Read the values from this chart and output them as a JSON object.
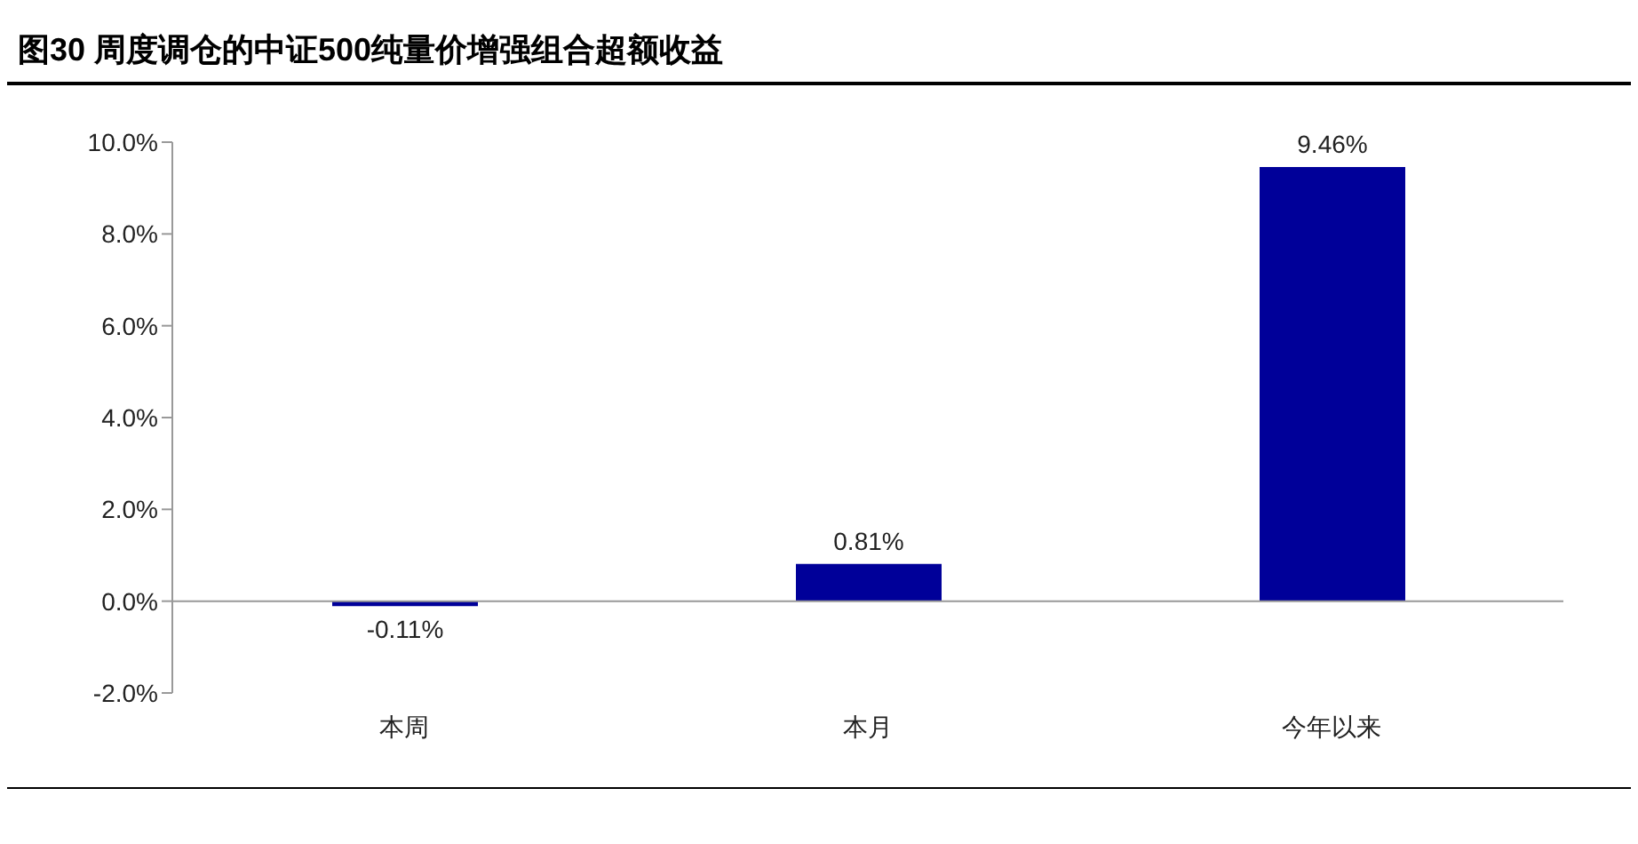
{
  "chart_data": {
    "type": "bar",
    "title": "图30 周度调仓的中证500纯量价增强组合超额收益",
    "categories": [
      "本周",
      "本月",
      "今年以来"
    ],
    "values": [
      -0.11,
      0.81,
      9.46
    ],
    "value_labels": [
      "-0.11%",
      "0.81%",
      "9.46%"
    ],
    "color": "#000099",
    "ylim": [
      -2,
      10
    ],
    "yticks": [
      {
        "value": -2,
        "label": "-2.0%"
      },
      {
        "value": 0,
        "label": "0.0%"
      },
      {
        "value": 2,
        "label": "2.0%"
      },
      {
        "value": 4,
        "label": "4.0%"
      },
      {
        "value": 6,
        "label": "6.0%"
      },
      {
        "value": 8,
        "label": "8.0%"
      },
      {
        "value": 10,
        "label": "10.0%"
      }
    ],
    "legend": false
  }
}
